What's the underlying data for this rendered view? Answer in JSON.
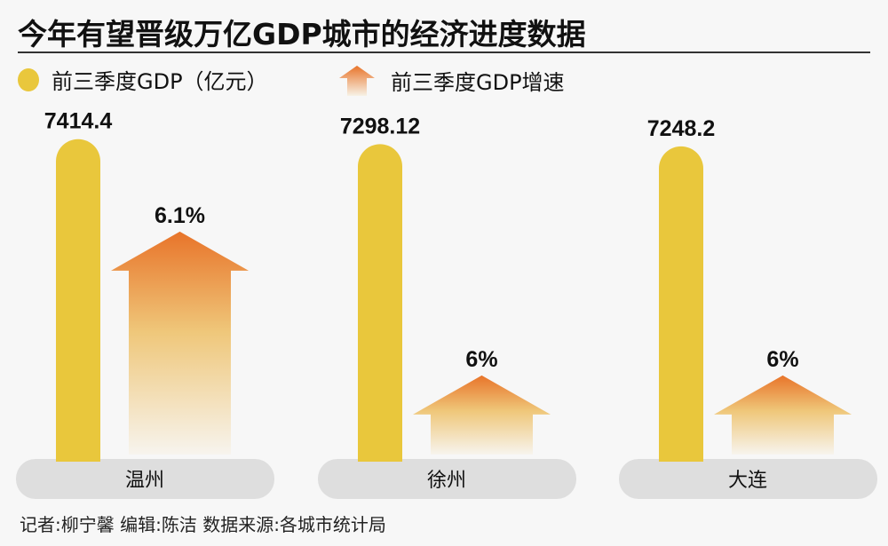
{
  "title": "今年有望晋级万亿GDP城市的经济进度数据",
  "legend": {
    "gdp": "前三季度GDP（亿元）",
    "growth": "前三季度GDP增速"
  },
  "colors": {
    "bar": "#e9c73c",
    "arrow_top": "#e8742a",
    "arrow_bottom": "#f7f2e6",
    "pill": "#dedede"
  },
  "chart_data": {
    "type": "bar",
    "categories": [
      "温州",
      "徐州",
      "大连"
    ],
    "series": [
      {
        "name": "前三季度GDP（亿元）",
        "values": [
          7414.4,
          7298.12,
          7248.2
        ],
        "labels": [
          "7414.4",
          "7298.12",
          "7248.2"
        ]
      },
      {
        "name": "前三季度GDP增速",
        "values": [
          6.1,
          6,
          6
        ],
        "labels": [
          "6.1%",
          "6%",
          "6%"
        ]
      }
    ]
  },
  "footer": "记者:柳宁馨   编辑:陈洁   数据来源:各城市统计局"
}
